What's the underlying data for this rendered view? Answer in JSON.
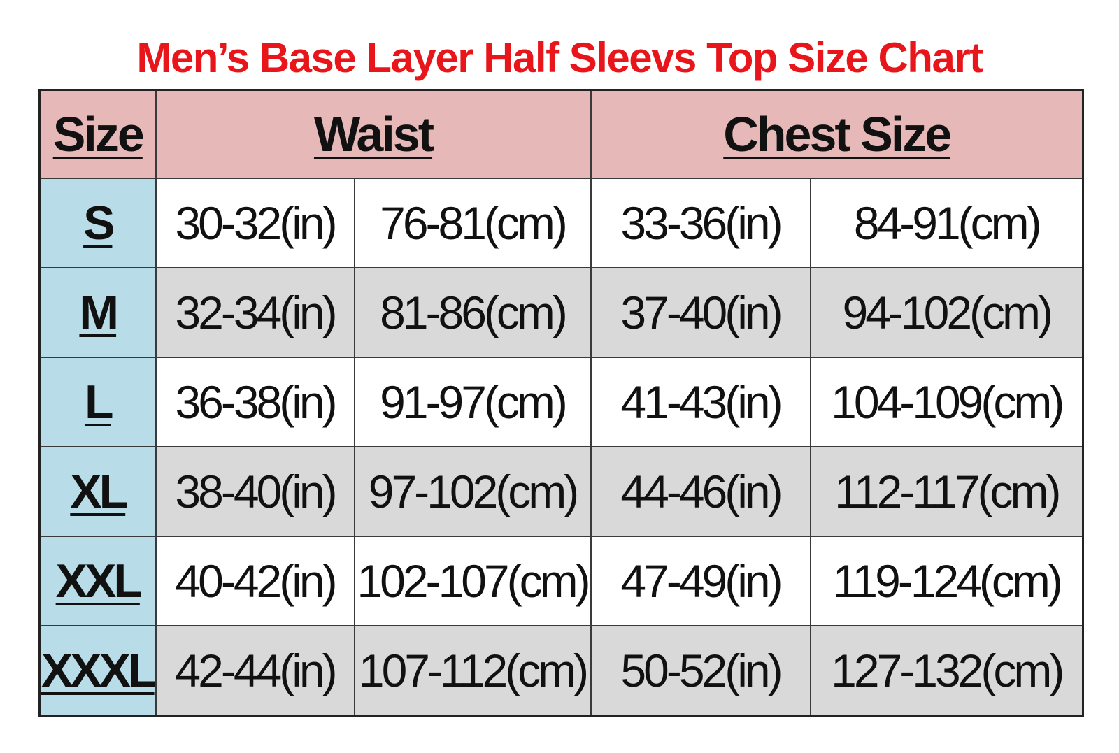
{
  "title": "Men’s Base Layer Half Sleevs Top Size Chart",
  "colors": {
    "title": "#e8161b",
    "header_bg": "#e6b8b8",
    "size_col_bg": "#b8dde8",
    "row_alt_bg": "#d9d9d9",
    "row_bg": "#ffffff"
  },
  "headers": {
    "size": "Size",
    "waist": "Waist",
    "chest": "Chest Size"
  },
  "rows": [
    {
      "size": "S",
      "waist_in": "30-32(in)",
      "waist_cm": "76-81(cm)",
      "chest_in": "33-36(in)",
      "chest_cm": "84-91(cm)"
    },
    {
      "size": "M",
      "waist_in": "32-34(in)",
      "waist_cm": "81-86(cm)",
      "chest_in": "37-40(in)",
      "chest_cm": "94-102(cm)"
    },
    {
      "size": "L",
      "waist_in": "36-38(in)",
      "waist_cm": "91-97(cm)",
      "chest_in": "41-43(in)",
      "chest_cm": "104-109(cm)"
    },
    {
      "size": "XL",
      "waist_in": "38-40(in)",
      "waist_cm": "97-102(cm)",
      "chest_in": "44-46(in)",
      "chest_cm": "112-117(cm)"
    },
    {
      "size": "XXL",
      "waist_in": "40-42(in)",
      "waist_cm": "102-107(cm)",
      "chest_in": "47-49(in)",
      "chest_cm": "119-124(cm)"
    },
    {
      "size": "XXXL",
      "waist_in": "42-44(in)",
      "waist_cm": "107-112(cm)",
      "chest_in": "50-52(in)",
      "chest_cm": "127-132(cm)"
    }
  ]
}
